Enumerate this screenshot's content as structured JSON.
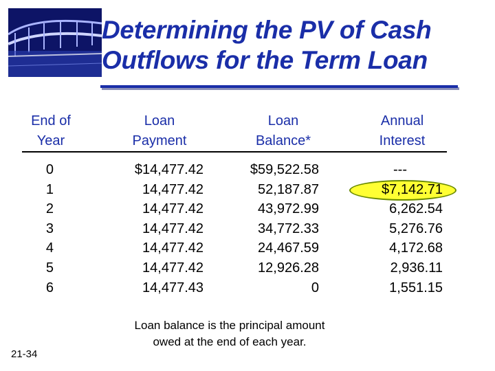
{
  "title": {
    "line1": "Determining the PV of Cash",
    "line2": "Outflows for the Term Loan"
  },
  "logo": {
    "icon": "bridge-photo-icon"
  },
  "headers": {
    "year": [
      "End of",
      "Year"
    ],
    "payment": [
      "Loan",
      "Payment"
    ],
    "balance": [
      "Loan",
      "Balance*"
    ],
    "interest": [
      "Annual",
      "Interest"
    ]
  },
  "table": {
    "years": [
      "0",
      "1",
      "2",
      "3",
      "4",
      "5",
      "6"
    ],
    "payments": [
      "$14,477.42",
      "14,477.42",
      "14,477.42",
      "14,477.42",
      "14,477.42",
      "14,477.42",
      "14,477.43"
    ],
    "balances": [
      "$59,522.58",
      "52,187.87",
      "43,972.99",
      "34,772.33",
      "24,467.59",
      "12,926.28",
      "0"
    ],
    "interest": [
      "---",
      "$7,142.71",
      "6,262.54",
      "5,276.76",
      "4,172.68",
      "2,936.11",
      "1,551.15"
    ]
  },
  "highlight_color": "#ffff33",
  "accent_color": "#1a2ea8",
  "note": [
    "Loan balance is the principal amount",
    "owed at the end of each year."
  ],
  "slide_number": "21-34"
}
